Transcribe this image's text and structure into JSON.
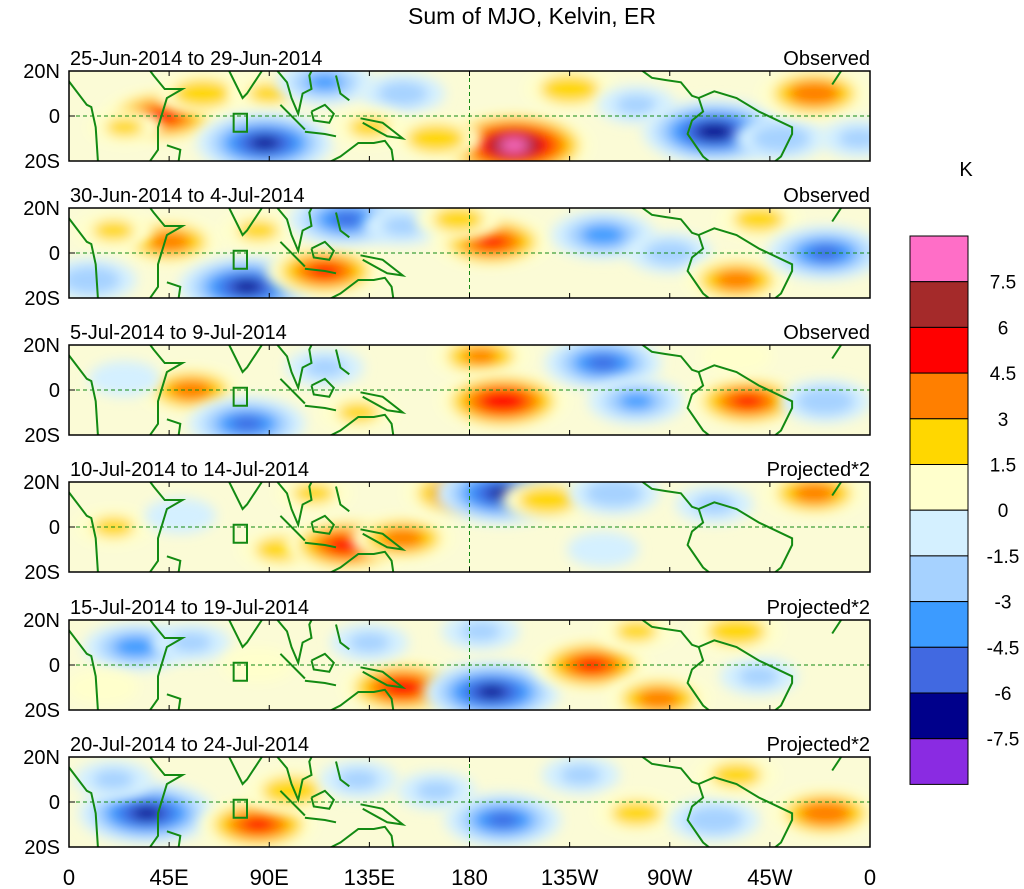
{
  "chart_data": {
    "type": "heatmap",
    "title": "Sum of MJO, Kelvin, ER",
    "x_ticks": [
      "0",
      "45E",
      "90E",
      "135E",
      "180",
      "135W",
      "90W",
      "45W",
      "0"
    ],
    "y_ticks": [
      "20N",
      "0",
      "20S"
    ],
    "colorbar": {
      "unit": "K",
      "levels": [
        "7.5",
        "6",
        "4.5",
        "3",
        "1.5",
        "0",
        "-1.5",
        "-3",
        "-4.5",
        "-6",
        "-7.5"
      ],
      "colors": [
        "#ff6ec7",
        "#a52a2a",
        "#ff0000",
        "#ff7f00",
        "#ffd700",
        "#ffffcc",
        "#d4f0ff",
        "#a6d2ff",
        "#3c9bff",
        "#4169e1",
        "#00008b",
        "#8a2be2"
      ]
    },
    "panels": [
      {
        "date_range": "25-Jun-2014 to 29-Jun-2014",
        "label": "Observed",
        "anomalies": [
          {
            "lon": 42,
            "lat": 0,
            "value": 5.2
          },
          {
            "lon": 60,
            "lat": 10,
            "value": 3.0
          },
          {
            "lon": 25,
            "lat": -5,
            "value": 1.8
          },
          {
            "lon": 90,
            "lat": 10,
            "value": 2.0
          },
          {
            "lon": 88,
            "lat": -12,
            "value": -6.5
          },
          {
            "lon": 115,
            "lat": 15,
            "value": -3.5
          },
          {
            "lon": 150,
            "lat": 10,
            "value": -2.5
          },
          {
            "lon": 135,
            "lat": -5,
            "value": 2.0
          },
          {
            "lon": 200,
            "lat": -13,
            "value": 8.0
          },
          {
            "lon": 165,
            "lat": -10,
            "value": 3.0
          },
          {
            "lon": 225,
            "lat": 12,
            "value": 3.0
          },
          {
            "lon": 255,
            "lat": 5,
            "value": -2.0
          },
          {
            "lon": 290,
            "lat": -7,
            "value": -7.0
          },
          {
            "lon": 320,
            "lat": -10,
            "value": -3.0
          },
          {
            "lon": 335,
            "lat": 10,
            "value": 4.5
          },
          {
            "lon": 355,
            "lat": -10,
            "value": -2.0
          }
        ]
      },
      {
        "date_range": "30-Jun-2014 to 4-Jul-2014",
        "label": "Observed",
        "anomalies": [
          {
            "lon": 45,
            "lat": 5,
            "value": 4.0
          },
          {
            "lon": 20,
            "lat": 10,
            "value": 2.0
          },
          {
            "lon": 10,
            "lat": -12,
            "value": -3.0
          },
          {
            "lon": 80,
            "lat": -15,
            "value": -6.5
          },
          {
            "lon": 85,
            "lat": 10,
            "value": 2.0
          },
          {
            "lon": 115,
            "lat": -8,
            "value": 5.0
          },
          {
            "lon": 125,
            "lat": 15,
            "value": -5.0
          },
          {
            "lon": 150,
            "lat": 12,
            "value": -2.0
          },
          {
            "lon": 190,
            "lat": 5,
            "value": 5.0
          },
          {
            "lon": 175,
            "lat": 15,
            "value": 2.5
          },
          {
            "lon": 240,
            "lat": 8,
            "value": -4.0
          },
          {
            "lon": 270,
            "lat": 0,
            "value": -2.5
          },
          {
            "lon": 300,
            "lat": -12,
            "value": 4.0
          },
          {
            "lon": 310,
            "lat": 15,
            "value": 2.5
          },
          {
            "lon": 340,
            "lat": 0,
            "value": -5.0
          }
        ]
      },
      {
        "date_range": "5-Jul-2014 to 9-Jul-2014",
        "label": "Observed",
        "anomalies": [
          {
            "lon": 55,
            "lat": 0,
            "value": 4.0
          },
          {
            "lon": 25,
            "lat": 5,
            "value": -1.5
          },
          {
            "lon": 80,
            "lat": -15,
            "value": -5.0
          },
          {
            "lon": 115,
            "lat": 10,
            "value": -2.0
          },
          {
            "lon": 130,
            "lat": -10,
            "value": 2.0
          },
          {
            "lon": 185,
            "lat": 15,
            "value": 3.5
          },
          {
            "lon": 195,
            "lat": -5,
            "value": 6.0
          },
          {
            "lon": 240,
            "lat": 12,
            "value": -5.0
          },
          {
            "lon": 255,
            "lat": -5,
            "value": -3.5
          },
          {
            "lon": 305,
            "lat": -5,
            "value": 5.0
          },
          {
            "lon": 300,
            "lat": 15,
            "value": 1.5
          },
          {
            "lon": 340,
            "lat": -5,
            "value": -3.0
          }
        ]
      },
      {
        "date_range": "10-Jul-2014 to 14-Jul-2014",
        "label": "Projected*2",
        "anomalies": [
          {
            "lon": 20,
            "lat": 0,
            "value": 2.0
          },
          {
            "lon": 50,
            "lat": 5,
            "value": -1.5
          },
          {
            "lon": 95,
            "lat": -10,
            "value": 2.5
          },
          {
            "lon": 125,
            "lat": -8,
            "value": 5.5
          },
          {
            "lon": 110,
            "lat": 15,
            "value": 2.0
          },
          {
            "lon": 150,
            "lat": -5,
            "value": 4.0
          },
          {
            "lon": 175,
            "lat": 15,
            "value": 4.5
          },
          {
            "lon": 195,
            "lat": 15,
            "value": -6.5
          },
          {
            "lon": 215,
            "lat": 12,
            "value": 3.0
          },
          {
            "lon": 245,
            "lat": 15,
            "value": -3.0
          },
          {
            "lon": 290,
            "lat": 10,
            "value": -2.0
          },
          {
            "lon": 335,
            "lat": 15,
            "value": 4.0
          },
          {
            "lon": 240,
            "lat": -10,
            "value": -1.5
          }
        ]
      },
      {
        "date_range": "15-Jul-2014 to 19-Jul-2014",
        "label": "Projected*2",
        "anomalies": [
          {
            "lon": 30,
            "lat": 8,
            "value": -4.0
          },
          {
            "lon": 55,
            "lat": 10,
            "value": -2.0
          },
          {
            "lon": 15,
            "lat": -10,
            "value": 1.5
          },
          {
            "lon": 85,
            "lat": 0,
            "value": 1.5
          },
          {
            "lon": 150,
            "lat": -10,
            "value": 5.5
          },
          {
            "lon": 135,
            "lat": 10,
            "value": -2.0
          },
          {
            "lon": 190,
            "lat": -12,
            "value": -6.5
          },
          {
            "lon": 185,
            "lat": 15,
            "value": -2.0
          },
          {
            "lon": 235,
            "lat": 0,
            "value": 5.0
          },
          {
            "lon": 265,
            "lat": -15,
            "value": 4.0
          },
          {
            "lon": 255,
            "lat": 15,
            "value": 2.0
          },
          {
            "lon": 310,
            "lat": -5,
            "value": -2.0
          },
          {
            "lon": 300,
            "lat": 15,
            "value": 3.0
          }
        ]
      },
      {
        "date_range": "20-Jul-2014 to 24-Jul-2014",
        "label": "Projected*2",
        "anomalies": [
          {
            "lon": 35,
            "lat": -5,
            "value": -6.5
          },
          {
            "lon": 20,
            "lat": 10,
            "value": -2.0
          },
          {
            "lon": 85,
            "lat": -10,
            "value": 5.0
          },
          {
            "lon": 100,
            "lat": 5,
            "value": 3.0
          },
          {
            "lon": 130,
            "lat": 10,
            "value": -2.0
          },
          {
            "lon": 165,
            "lat": 5,
            "value": -2.0
          },
          {
            "lon": 195,
            "lat": -8,
            "value": -5.0
          },
          {
            "lon": 230,
            "lat": 12,
            "value": -2.0
          },
          {
            "lon": 255,
            "lat": -5,
            "value": 2.5
          },
          {
            "lon": 290,
            "lat": -8,
            "value": -3.0
          },
          {
            "lon": 300,
            "lat": 12,
            "value": 2.5
          },
          {
            "lon": 340,
            "lat": -5,
            "value": 4.5
          }
        ]
      }
    ]
  }
}
